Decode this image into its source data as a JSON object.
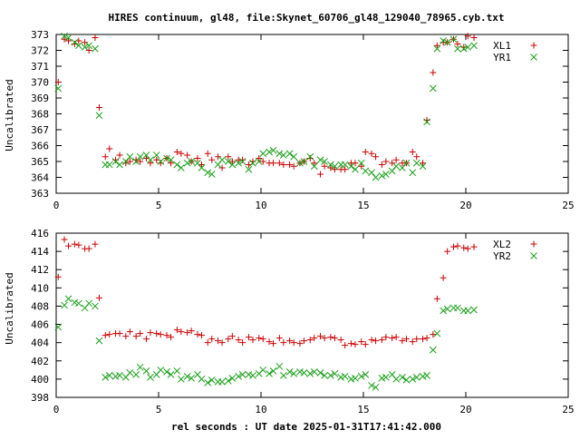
{
  "title": "HIRES continuum, gl48, file:Skynet_60706_gl48_129040_78965.cyb.txt",
  "xlabel": "rel seconds : UT date 2025-01-31T17:41:42.000",
  "colors": {
    "series1": "#cc0000",
    "series2": "#1aa01a"
  },
  "chart_data": [
    {
      "type": "scatter",
      "ylabel": "Uncalibrated",
      "xlim": [
        0,
        25
      ],
      "ylim": [
        363,
        373
      ],
      "xticks": [
        "0",
        "5",
        "10",
        "15",
        "20",
        "25"
      ],
      "yticks": [
        "363",
        "364",
        "365",
        "366",
        "367",
        "368",
        "369",
        "370",
        "371",
        "372",
        "373"
      ],
      "grid": false,
      "legend": "top-right",
      "series": [
        {
          "name": "XL1",
          "marker": "plus",
          "x": [
            0.1,
            0.4,
            0.6,
            0.9,
            1.1,
            1.4,
            1.6,
            1.9,
            2.1,
            2.4,
            2.6,
            2.9,
            3.1,
            3.4,
            3.6,
            3.9,
            4.1,
            4.4,
            4.6,
            4.9,
            5.1,
            5.4,
            5.6,
            5.9,
            6.1,
            6.4,
            6.6,
            6.9,
            7.1,
            7.4,
            7.6,
            7.9,
            8.1,
            8.4,
            8.6,
            8.9,
            9.1,
            9.4,
            9.6,
            9.9,
            10.1,
            10.4,
            10.6,
            10.9,
            11.1,
            11.4,
            11.6,
            11.9,
            12.1,
            12.4,
            12.6,
            12.9,
            13.1,
            13.4,
            13.6,
            13.9,
            14.1,
            14.4,
            14.6,
            14.9,
            15.1,
            15.4,
            15.6,
            15.9,
            16.1,
            16.4,
            16.6,
            16.9,
            17.1,
            17.4,
            17.6,
            17.9,
            18.1,
            18.4,
            18.6,
            18.9,
            19.1,
            19.4,
            19.6,
            19.9,
            20.1,
            20.4
          ],
          "y": [
            370.0,
            372.7,
            372.6,
            372.4,
            372.6,
            372.5,
            372.0,
            372.8,
            368.4,
            365.3,
            365.8,
            365.1,
            365.4,
            364.9,
            365.0,
            365.1,
            365.0,
            365.2,
            364.9,
            365.1,
            364.9,
            365.2,
            364.9,
            365.6,
            365.5,
            365.4,
            365.0,
            365.2,
            364.8,
            365.5,
            365.1,
            365.3,
            364.6,
            365.3,
            365.0,
            365.1,
            365.1,
            364.8,
            365.0,
            365.2,
            365.0,
            364.9,
            364.9,
            364.9,
            364.8,
            364.8,
            364.7,
            364.9,
            365.0,
            365.2,
            364.9,
            364.2,
            364.7,
            364.6,
            364.5,
            364.5,
            364.5,
            364.9,
            364.9,
            364.7,
            365.6,
            365.5,
            365.3,
            364.8,
            365.0,
            364.9,
            365.1,
            364.9,
            364.9,
            365.6,
            365.3,
            364.9,
            367.6,
            370.6,
            372.3,
            372.5,
            372.5,
            372.7,
            372.4,
            372.2,
            372.9,
            372.8
          ]
        },
        {
          "name": "YR1",
          "marker": "cross",
          "x": [
            0.1,
            0.4,
            0.6,
            0.9,
            1.1,
            1.4,
            1.6,
            1.9,
            2.1,
            2.4,
            2.6,
            2.9,
            3.1,
            3.4,
            3.6,
            3.9,
            4.1,
            4.4,
            4.6,
            4.9,
            5.1,
            5.4,
            5.6,
            5.9,
            6.1,
            6.4,
            6.6,
            6.9,
            7.1,
            7.4,
            7.6,
            7.9,
            8.1,
            8.4,
            8.6,
            8.9,
            9.1,
            9.4,
            9.6,
            9.9,
            10.1,
            10.4,
            10.6,
            10.9,
            11.1,
            11.4,
            11.6,
            11.9,
            12.1,
            12.4,
            12.6,
            12.9,
            13.1,
            13.4,
            13.6,
            13.9,
            14.1,
            14.4,
            14.6,
            14.9,
            15.1,
            15.4,
            15.6,
            15.9,
            16.1,
            16.4,
            16.6,
            16.9,
            17.1,
            17.4,
            17.6,
            17.9,
            18.1,
            18.4,
            18.6,
            18.9,
            19.1,
            19.4,
            19.6,
            19.9,
            20.1,
            20.4
          ],
          "y": [
            369.6,
            372.9,
            372.8,
            372.5,
            372.3,
            372.2,
            372.3,
            372.1,
            367.9,
            364.8,
            364.8,
            365.0,
            364.8,
            365.0,
            365.3,
            365.0,
            365.3,
            365.4,
            365.1,
            365.4,
            365.0,
            365.2,
            365.1,
            364.8,
            364.6,
            364.9,
            365.0,
            364.9,
            364.6,
            364.3,
            364.2,
            364.8,
            365.1,
            365.0,
            364.8,
            364.9,
            365.0,
            364.5,
            364.9,
            365.0,
            365.5,
            365.6,
            365.7,
            365.5,
            365.4,
            365.5,
            365.3,
            364.9,
            365.0,
            365.3,
            364.7,
            365.1,
            365.0,
            364.8,
            364.7,
            364.8,
            364.8,
            364.7,
            364.5,
            364.9,
            364.4,
            364.3,
            364.0,
            364.1,
            364.2,
            364.4,
            364.7,
            364.6,
            364.9,
            364.3,
            364.9,
            364.7,
            367.5,
            369.6,
            372.1,
            372.6,
            372.5,
            372.7,
            372.1,
            372.1,
            372.2,
            372.3
          ]
        }
      ]
    },
    {
      "type": "scatter",
      "ylabel": "Uncalibrated",
      "xlim": [
        0,
        25
      ],
      "ylim": [
        398,
        416
      ],
      "xticks": [
        "0",
        "5",
        "10",
        "15",
        "20",
        "25"
      ],
      "yticks": [
        "398",
        "400",
        "402",
        "404",
        "406",
        "408",
        "410",
        "412",
        "414",
        "416"
      ],
      "grid": false,
      "legend": "top-right",
      "series": [
        {
          "name": "XL2",
          "marker": "plus",
          "x": [
            0.1,
            0.4,
            0.6,
            0.9,
            1.1,
            1.4,
            1.6,
            1.9,
            2.1,
            2.4,
            2.6,
            2.9,
            3.1,
            3.4,
            3.6,
            3.9,
            4.1,
            4.4,
            4.6,
            4.9,
            5.1,
            5.4,
            5.6,
            5.9,
            6.1,
            6.4,
            6.6,
            6.9,
            7.1,
            7.4,
            7.6,
            7.9,
            8.1,
            8.4,
            8.6,
            8.9,
            9.1,
            9.4,
            9.6,
            9.9,
            10.1,
            10.4,
            10.6,
            10.9,
            11.1,
            11.4,
            11.6,
            11.9,
            12.1,
            12.4,
            12.6,
            12.9,
            13.1,
            13.4,
            13.6,
            13.9,
            14.1,
            14.4,
            14.6,
            14.9,
            15.1,
            15.4,
            15.6,
            15.9,
            16.1,
            16.4,
            16.6,
            16.9,
            17.1,
            17.4,
            17.6,
            17.9,
            18.1,
            18.4,
            18.6,
            18.9,
            19.1,
            19.4,
            19.6,
            19.9,
            20.1,
            20.4
          ],
          "y": [
            411.2,
            415.3,
            414.6,
            414.8,
            414.7,
            414.3,
            414.3,
            414.8,
            408.9,
            404.8,
            404.9,
            405.0,
            405.0,
            404.7,
            405.2,
            404.7,
            405.0,
            404.4,
            405.1,
            405.0,
            404.9,
            404.8,
            404.6,
            405.4,
            405.2,
            405.1,
            405.3,
            404.9,
            404.8,
            404.0,
            404.4,
            404.2,
            404.0,
            404.4,
            404.7,
            404.3,
            404.0,
            404.6,
            404.3,
            404.5,
            404.4,
            404.1,
            403.9,
            404.5,
            404.0,
            404.2,
            404.0,
            403.9,
            404.2,
            404.3,
            404.5,
            404.7,
            404.5,
            404.6,
            404.5,
            404.3,
            403.7,
            403.9,
            403.8,
            404.1,
            403.8,
            404.3,
            404.2,
            404.3,
            404.6,
            404.5,
            404.6,
            404.2,
            404.4,
            404.1,
            404.4,
            404.4,
            404.5,
            404.9,
            408.8,
            411.1,
            414.0,
            414.5,
            414.6,
            414.4,
            414.3,
            414.5
          ]
        },
        {
          "name": "YR2",
          "marker": "cross",
          "x": [
            0.1,
            0.4,
            0.6,
            0.9,
            1.1,
            1.4,
            1.6,
            1.9,
            2.1,
            2.4,
            2.6,
            2.9,
            3.1,
            3.4,
            3.6,
            3.9,
            4.1,
            4.4,
            4.6,
            4.9,
            5.1,
            5.4,
            5.6,
            5.9,
            6.1,
            6.4,
            6.6,
            6.9,
            7.1,
            7.4,
            7.6,
            7.9,
            8.1,
            8.4,
            8.6,
            8.9,
            9.1,
            9.4,
            9.6,
            9.9,
            10.1,
            10.4,
            10.6,
            10.9,
            11.1,
            11.4,
            11.6,
            11.9,
            12.1,
            12.4,
            12.6,
            12.9,
            13.1,
            13.4,
            13.6,
            13.9,
            14.1,
            14.4,
            14.6,
            14.9,
            15.1,
            15.4,
            15.6,
            15.9,
            16.1,
            16.4,
            16.6,
            16.9,
            17.1,
            17.4,
            17.6,
            17.9,
            18.1,
            18.4,
            18.6,
            18.9,
            19.1,
            19.4,
            19.6,
            19.9,
            20.1,
            20.4
          ],
          "y": [
            405.7,
            408.1,
            408.8,
            408.4,
            408.3,
            407.8,
            408.3,
            408.0,
            404.2,
            400.2,
            400.4,
            400.3,
            400.4,
            400.2,
            400.7,
            400.5,
            401.3,
            400.9,
            400.2,
            400.5,
            401.0,
            400.8,
            400.5,
            400.9,
            400.0,
            400.3,
            400.1,
            400.5,
            400.0,
            399.6,
            399.9,
            399.7,
            399.7,
            399.8,
            400.1,
            400.3,
            400.5,
            400.5,
            400.4,
            400.6,
            401.0,
            400.6,
            400.9,
            401.4,
            400.4,
            400.8,
            400.6,
            400.8,
            400.7,
            400.6,
            400.8,
            400.7,
            400.4,
            400.4,
            400.6,
            400.2,
            400.3,
            400.0,
            400.1,
            400.3,
            400.5,
            399.3,
            399.1,
            400.1,
            400.2,
            400.5,
            400.0,
            400.2,
            399.9,
            400.0,
            400.2,
            400.3,
            400.4,
            403.2,
            405.0,
            407.5,
            407.7,
            407.8,
            407.8,
            407.5,
            407.5,
            407.6
          ]
        }
      ]
    }
  ]
}
